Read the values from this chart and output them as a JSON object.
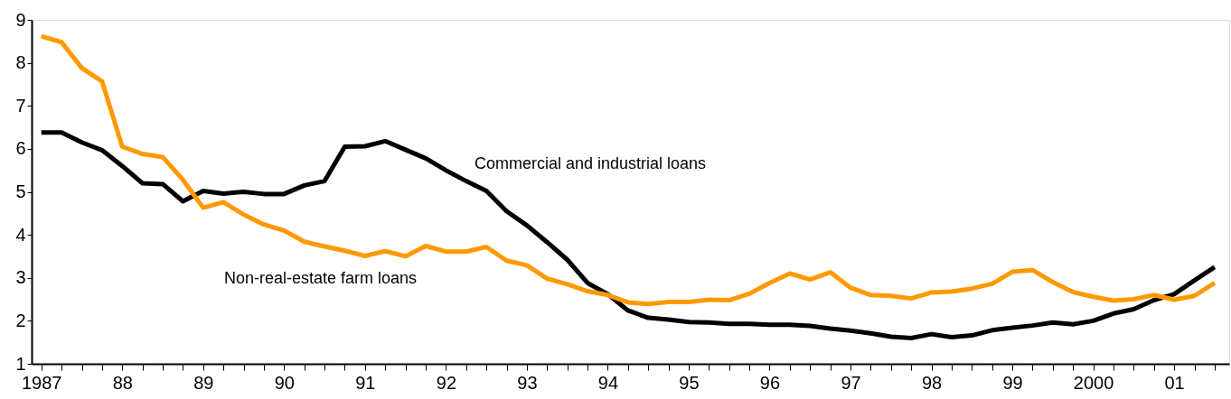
{
  "chart_data": {
    "type": "line",
    "x": [
      1987,
      1987.25,
      1987.5,
      1987.75,
      1988,
      1988.25,
      1988.5,
      1988.75,
      1989,
      1989.25,
      1989.5,
      1989.75,
      1990,
      1990.25,
      1990.5,
      1990.75,
      1991,
      1991.25,
      1991.5,
      1991.75,
      1992,
      1992.25,
      1992.5,
      1992.75,
      1993,
      1993.25,
      1993.5,
      1993.75,
      1994,
      1994.25,
      1994.5,
      1994.75,
      1995,
      1995.25,
      1995.5,
      1995.75,
      1996,
      1996.25,
      1996.5,
      1996.75,
      1997,
      1997.25,
      1997.5,
      1997.75,
      1998,
      1998.25,
      1998.5,
      1998.75,
      1999,
      1999.25,
      1999.5,
      1999.75,
      2000,
      2000.25,
      2000.5,
      2000.75,
      2001,
      2001.25,
      2001.5
    ],
    "series": [
      {
        "name": "Commercial and industrial loans",
        "color": "#000000",
        "values": [
          6.38,
          6.38,
          6.15,
          5.97,
          5.6,
          5.2,
          5.18,
          4.78,
          5.02,
          4.96,
          5.0,
          4.95,
          4.95,
          5.15,
          5.25,
          6.05,
          6.06,
          6.18,
          5.98,
          5.78,
          5.5,
          5.25,
          5.02,
          4.55,
          4.22,
          3.83,
          3.42,
          2.88,
          2.62,
          2.24,
          2.07,
          2.03,
          1.97,
          1.96,
          1.93,
          1.93,
          1.91,
          1.91,
          1.88,
          1.82,
          1.77,
          1.71,
          1.63,
          1.6,
          1.69,
          1.62,
          1.66,
          1.78,
          1.84,
          1.89,
          1.96,
          1.92,
          2.0,
          2.17,
          2.27,
          2.48,
          2.62,
          2.94,
          3.25
        ]
      },
      {
        "name": "Non-real-estate farm loans",
        "color": "#ff9900",
        "values": [
          8.62,
          8.48,
          7.88,
          7.57,
          6.05,
          5.88,
          5.81,
          5.28,
          4.63,
          4.76,
          4.47,
          4.24,
          4.1,
          3.84,
          3.73,
          3.63,
          3.51,
          3.62,
          3.5,
          3.74,
          3.61,
          3.61,
          3.72,
          3.4,
          3.29,
          2.98,
          2.85,
          2.69,
          2.6,
          2.43,
          2.39,
          2.44,
          2.44,
          2.49,
          2.48,
          2.63,
          2.88,
          3.1,
          2.96,
          3.13,
          2.77,
          2.6,
          2.58,
          2.52,
          2.66,
          2.68,
          2.75,
          2.86,
          3.14,
          3.18,
          2.9,
          2.67,
          2.56,
          2.47,
          2.5,
          2.6,
          2.49,
          2.58,
          2.88
        ]
      }
    ],
    "xlim": [
      1986.88,
      2001.68
    ],
    "xticks": [
      {
        "value": 1987,
        "label": "1987"
      },
      {
        "value": 1987.25,
        "label": null
      },
      {
        "value": 1987.5,
        "label": null
      },
      {
        "value": 1987.75,
        "label": null
      },
      {
        "value": 1988,
        "label": "88"
      },
      {
        "value": 1988.25,
        "label": null
      },
      {
        "value": 1988.5,
        "label": null
      },
      {
        "value": 1988.75,
        "label": null
      },
      {
        "value": 1989,
        "label": "89"
      },
      {
        "value": 1989.25,
        "label": null
      },
      {
        "value": 1989.5,
        "label": null
      },
      {
        "value": 1989.75,
        "label": null
      },
      {
        "value": 1990,
        "label": "90"
      },
      {
        "value": 1990.25,
        "label": null
      },
      {
        "value": 1990.5,
        "label": null
      },
      {
        "value": 1990.75,
        "label": null
      },
      {
        "value": 1991,
        "label": "91"
      },
      {
        "value": 1991.25,
        "label": null
      },
      {
        "value": 1991.5,
        "label": null
      },
      {
        "value": 1991.75,
        "label": null
      },
      {
        "value": 1992,
        "label": "92"
      },
      {
        "value": 1992.25,
        "label": null
      },
      {
        "value": 1992.5,
        "label": null
      },
      {
        "value": 1992.75,
        "label": null
      },
      {
        "value": 1993,
        "label": "93"
      },
      {
        "value": 1993.25,
        "label": null
      },
      {
        "value": 1993.5,
        "label": null
      },
      {
        "value": 1993.75,
        "label": null
      },
      {
        "value": 1994,
        "label": "94"
      },
      {
        "value": 1994.25,
        "label": null
      },
      {
        "value": 1994.5,
        "label": null
      },
      {
        "value": 1994.75,
        "label": null
      },
      {
        "value": 1995,
        "label": "95"
      },
      {
        "value": 1995.25,
        "label": null
      },
      {
        "value": 1995.5,
        "label": null
      },
      {
        "value": 1995.75,
        "label": null
      },
      {
        "value": 1996,
        "label": "96"
      },
      {
        "value": 1996.25,
        "label": null
      },
      {
        "value": 1996.5,
        "label": null
      },
      {
        "value": 1996.75,
        "label": null
      },
      {
        "value": 1997,
        "label": "97"
      },
      {
        "value": 1997.25,
        "label": null
      },
      {
        "value": 1997.5,
        "label": null
      },
      {
        "value": 1997.75,
        "label": null
      },
      {
        "value": 1998,
        "label": "98"
      },
      {
        "value": 1998.25,
        "label": null
      },
      {
        "value": 1998.5,
        "label": null
      },
      {
        "value": 1998.75,
        "label": null
      },
      {
        "value": 1999,
        "label": "99"
      },
      {
        "value": 1999.25,
        "label": null
      },
      {
        "value": 1999.5,
        "label": null
      },
      {
        "value": 1999.75,
        "label": null
      },
      {
        "value": 2000,
        "label": "2000"
      },
      {
        "value": 2000.25,
        "label": null
      },
      {
        "value": 2000.5,
        "label": null
      },
      {
        "value": 2000.75,
        "label": null
      },
      {
        "value": 2001,
        "label": "01"
      },
      {
        "value": 2001.25,
        "label": null
      },
      {
        "value": 2001.5,
        "label": null
      }
    ],
    "ylim": [
      1,
      9
    ],
    "yticks": [
      1,
      2,
      3,
      4,
      5,
      6,
      7,
      8,
      9
    ],
    "grid": false,
    "line_style": "solid"
  }
}
